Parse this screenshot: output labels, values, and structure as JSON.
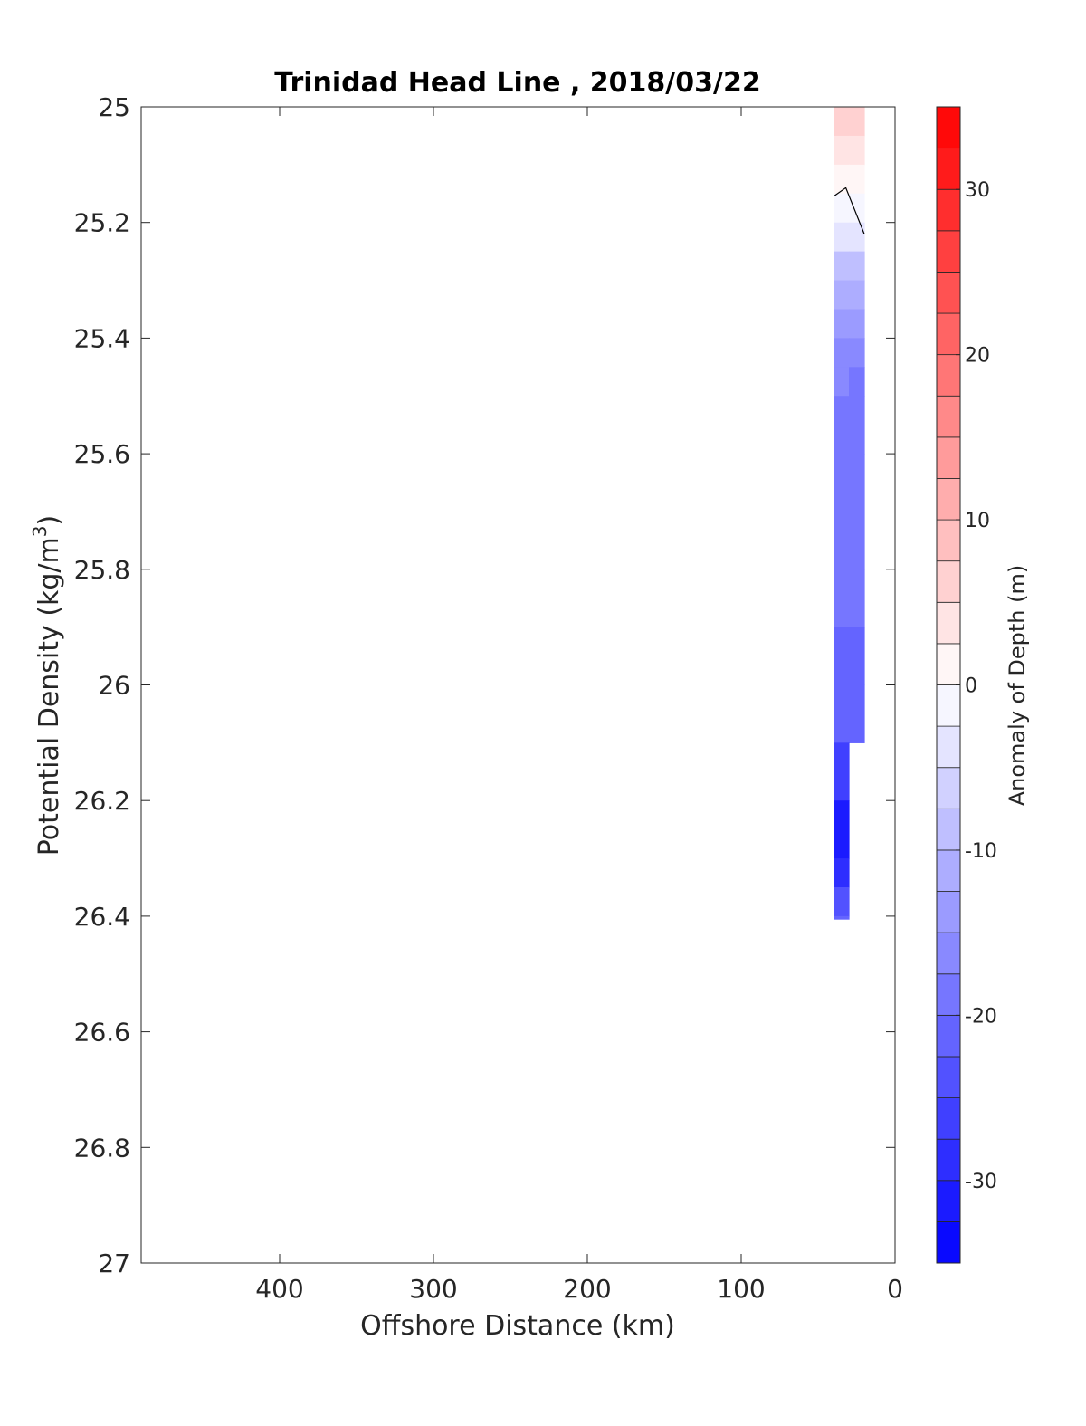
{
  "chart_data": {
    "type": "heatmap",
    "title": "Trinidad Head Line , 2018/03/22",
    "xlabel": "Offshore Distance (km)",
    "ylabel_main": "Potential Density (kg/m",
    "ylabel_sup": "3",
    "ylabel_close": ")",
    "xlim": [
      490,
      0
    ],
    "ylim": [
      25,
      27
    ],
    "x_ticks": [
      400,
      300,
      200,
      100,
      0
    ],
    "x_tick_labels": [
      "400",
      "300",
      "200",
      "100",
      "0"
    ],
    "y_ticks": [
      25,
      25.2,
      25.4,
      25.6,
      25.8,
      26,
      26.2,
      26.4,
      26.6,
      26.8,
      27
    ],
    "y_tick_labels": [
      "25",
      "25.2",
      "25.4",
      "25.6",
      "25.8",
      "26",
      "26.2",
      "26.4",
      "26.6",
      "26.8",
      "27"
    ],
    "colorbar": {
      "label": "Anomaly of Depth (m)",
      "clim": [
        -35,
        35
      ],
      "levels": 28,
      "ticks": [
        30,
        20,
        10,
        0,
        -10,
        -20,
        -30
      ],
      "tick_labels": [
        "30",
        "20",
        "10",
        "0",
        "-10",
        "-20",
        "-30"
      ],
      "colormap": "blue-white-red",
      "low_color": "#0000ff",
      "mid_color": "#ffffff",
      "high_color": "#ff0000"
    },
    "field": {
      "x_stations": [
        40,
        30,
        20
      ],
      "rows": [
        {
          "sigma": 25.0,
          "values": [
            6,
            8,
            6
          ]
        },
        {
          "sigma": 25.05,
          "values": [
            5,
            7,
            5
          ]
        },
        {
          "sigma": 25.1,
          "values": [
            3,
            4,
            3
          ]
        },
        {
          "sigma": 25.15,
          "values": [
            1,
            0,
            2
          ]
        },
        {
          "sigma": 25.2,
          "values": [
            -2,
            -3,
            -1
          ]
        },
        {
          "sigma": 25.25,
          "values": [
            -6,
            -8,
            -5
          ]
        },
        {
          "sigma": 25.3,
          "values": [
            -9,
            -12,
            -8
          ]
        },
        {
          "sigma": 25.35,
          "values": [
            -11,
            -14,
            -11
          ]
        },
        {
          "sigma": 25.4,
          "values": [
            -12,
            -17,
            -14
          ]
        },
        {
          "sigma": 25.45,
          "values": [
            -13,
            -19,
            -17
          ]
        },
        {
          "sigma": 25.5,
          "values": [
            -16,
            -20,
            -18
          ]
        },
        {
          "sigma": 25.6,
          "values": [
            -19,
            -20,
            -19
          ]
        },
        {
          "sigma": 25.7,
          "values": [
            -20,
            -19,
            -19
          ]
        },
        {
          "sigma": 25.8,
          "values": [
            -19,
            -19,
            -19
          ]
        },
        {
          "sigma": 25.9,
          "values": [
            -20,
            -19,
            -19
          ]
        },
        {
          "sigma": 26.0,
          "values": [
            -21,
            -21,
            -22
          ]
        },
        {
          "sigma": 26.1,
          "values": [
            -24,
            -24,
            null
          ]
        },
        {
          "sigma": 26.2,
          "values": [
            -30,
            -30,
            null
          ]
        },
        {
          "sigma": 26.3,
          "values": [
            -31,
            -31,
            null
          ]
        },
        {
          "sigma": 26.35,
          "values": [
            -27,
            -27,
            null
          ]
        },
        {
          "sigma": 26.4,
          "values": [
            -21,
            -21,
            null
          ]
        }
      ],
      "zero_contour": [
        {
          "x": 40,
          "y": 25.155
        },
        {
          "x": 32,
          "y": 25.14
        },
        {
          "x": 20,
          "y": 25.22
        }
      ]
    }
  }
}
